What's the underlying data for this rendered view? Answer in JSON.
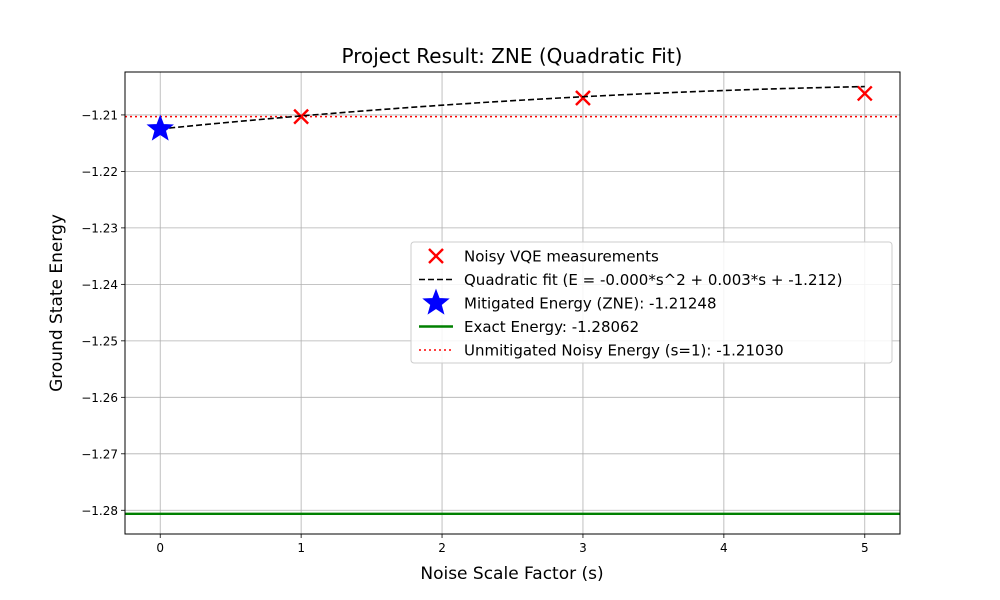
{
  "chart_data": {
    "type": "scatter",
    "title": "Project Result: ZNE (Quadratic Fit)",
    "xlabel": "Noise Scale Factor (s)",
    "ylabel": "Ground State Energy",
    "xlim": [
      -0.25,
      5.25
    ],
    "ylim": [
      -1.2842,
      -1.2024
    ],
    "x_ticks": [
      0,
      1,
      2,
      3,
      4,
      5
    ],
    "y_ticks": [
      -1.21,
      -1.22,
      -1.23,
      -1.24,
      -1.25,
      -1.26,
      -1.27,
      -1.28
    ],
    "x_tick_labels": [
      "0",
      "1",
      "2",
      "3",
      "4",
      "5"
    ],
    "y_tick_labels": [
      "−1.21",
      "−1.22",
      "−1.23",
      "−1.24",
      "−1.25",
      "−1.26",
      "−1.27",
      "−1.28"
    ],
    "grid": true,
    "legend_position": "center-right",
    "series": [
      {
        "name": "Noisy VQE measurements",
        "kind": "scatter",
        "marker": "x",
        "color": "#ff0000",
        "x": [
          1,
          3,
          5
        ],
        "y": [
          -1.2103,
          -1.207,
          -1.2062
        ]
      },
      {
        "name": "Quadratic fit (E = -0.000*s^2 + 0.003*s + -1.212)",
        "kind": "line",
        "style": "dashed",
        "color": "#000000",
        "coefficients": {
          "a": -0.0002,
          "b": 0.0025,
          "c": -1.21248
        },
        "x_range": [
          0,
          5
        ]
      },
      {
        "name": "Mitigated Energy (ZNE): -1.21248",
        "kind": "scatter",
        "marker": "star",
        "color": "#0000ff",
        "x": [
          0
        ],
        "y": [
          -1.21248
        ]
      },
      {
        "name": "Exact Energy: -1.28062",
        "kind": "hline",
        "style": "solid",
        "color": "#008000",
        "y": -1.28062
      },
      {
        "name": "Unmitigated Noisy Energy (s=1): -1.21030",
        "kind": "hline",
        "style": "dotted",
        "color": "#ff0000",
        "y": -1.2103
      }
    ]
  }
}
